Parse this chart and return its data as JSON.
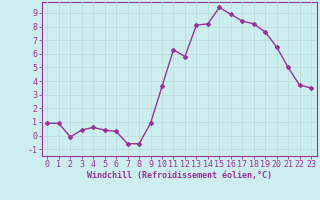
{
  "x": [
    0,
    1,
    2,
    3,
    4,
    5,
    6,
    7,
    8,
    9,
    10,
    11,
    12,
    13,
    14,
    15,
    16,
    17,
    18,
    19,
    20,
    21,
    22,
    23
  ],
  "y": [
    0.9,
    0.9,
    -0.1,
    0.4,
    0.6,
    0.4,
    0.3,
    -0.6,
    -0.6,
    0.9,
    3.6,
    6.3,
    5.8,
    8.1,
    8.2,
    9.4,
    8.9,
    8.4,
    8.2,
    7.6,
    6.5,
    5.0,
    3.7,
    3.5
  ],
  "line_color": "#993399",
  "marker": "D",
  "marker_size": 2,
  "bg_color": "#cceeee",
  "grid_color": "#bbdddd",
  "axis_color": "#993399",
  "xlabel": "Windchill (Refroidissement éolien,°C)",
  "xlim": [
    -0.5,
    23.5
  ],
  "ylim": [
    -1.5,
    9.8
  ],
  "xticks": [
    0,
    1,
    2,
    3,
    4,
    5,
    6,
    7,
    8,
    9,
    10,
    11,
    12,
    13,
    14,
    15,
    16,
    17,
    18,
    19,
    20,
    21,
    22,
    23
  ],
  "yticks": [
    -1,
    0,
    1,
    2,
    3,
    4,
    5,
    6,
    7,
    8,
    9
  ],
  "xlabel_fontsize": 6,
  "tick_fontsize": 6,
  "line_width": 1.0
}
